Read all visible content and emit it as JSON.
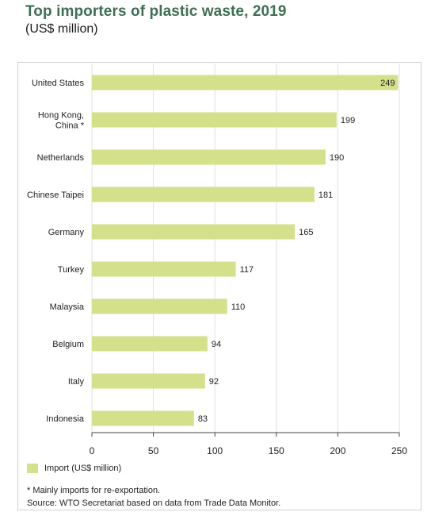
{
  "header": {
    "title": "Top importers of plastic waste, 2019",
    "subtitle": "(US$ million)"
  },
  "colors": {
    "bar": "#d4e08a",
    "title": "#3f6f55",
    "axis": "#444444",
    "frame": "#d0d0d0"
  },
  "chart_data": {
    "type": "bar",
    "orientation": "horizontal",
    "title": "Top importers of plastic waste, 2019",
    "subtitle": "(US$ million)",
    "categories": [
      "United States",
      "Hong Kong,\nChina *",
      "Netherlands",
      "Chinese Taipei",
      "Germany",
      "Turkey",
      "Malaysia",
      "Belgium",
      "Italy",
      "Indonesia"
    ],
    "series": [
      {
        "name": "Import (US$ million)",
        "values": [
          249,
          199,
          190,
          181,
          165,
          117,
          110,
          94,
          92,
          83
        ]
      }
    ],
    "data_labels": [
      "249",
      "199",
      "190",
      "181",
      "165",
      "117",
      "110",
      "94",
      "92",
      "83"
    ],
    "xlim": [
      0,
      250
    ],
    "x_ticks": [
      0,
      50,
      100,
      150,
      200,
      250
    ],
    "x_tick_labels": [
      "0",
      "50",
      "100",
      "150",
      "200",
      "250"
    ],
    "grid": "vertical",
    "legend_position": "bottom-left"
  },
  "legend": {
    "label": "Import (US$ million)"
  },
  "notes": {
    "footnote": "* Mainly imports for re-exportation.",
    "source": "Source: WTO Secretariat based on data from Trade Data Monitor."
  }
}
